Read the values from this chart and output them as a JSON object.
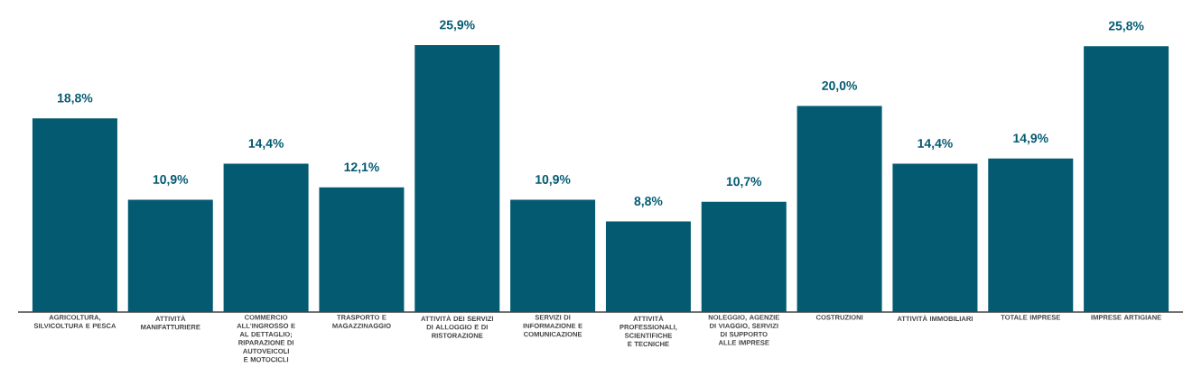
{
  "chart_data": {
    "type": "bar",
    "categories": [
      "AGRICOLTURA, SILVICOLTURA E PESCA",
      "ATTIVITÀ MANIFATTURIERE",
      "COMMERCIO ALL'INGROSSO E AL DETTAGLIO; RIPARAZIONE DI AUTOVEICOLI E MOTOCICLI",
      "TRASPORTO E MAGAZZINAGGIO",
      "ATTIVITÀ DEI SERVIZI DI ALLOGGIO E DI RISTORAZIONE",
      "SERVIZI DI INFORMAZIONE E COMUNICAZIONE",
      "ATTIVITÀ PROFESSIONALI, SCIENTIFICHE E TECNICHE",
      "NOLEGGIO, AGENZIE DI VIAGGIO, SERVIZI DI SUPPORTO ALLE IMPRESE",
      "COSTRUZIONI",
      "ATTIVITÀ IMMOBILIARI",
      "TOTALE IMPRESE",
      "IMPRESE ARTIGIANE"
    ],
    "values": [
      18.8,
      10.9,
      14.4,
      12.1,
      25.9,
      10.9,
      8.8,
      10.7,
      20.0,
      14.4,
      14.9,
      25.8
    ],
    "value_labels": [
      "18,8%",
      "10,9%",
      "14,4%",
      "12,1%",
      "25,9%",
      "10,9%",
      "8,8%",
      "10,7%",
      "20,0%",
      "14,4%",
      "14,9%",
      "25,8%"
    ],
    "color": "#035a71",
    "grid": false
  }
}
